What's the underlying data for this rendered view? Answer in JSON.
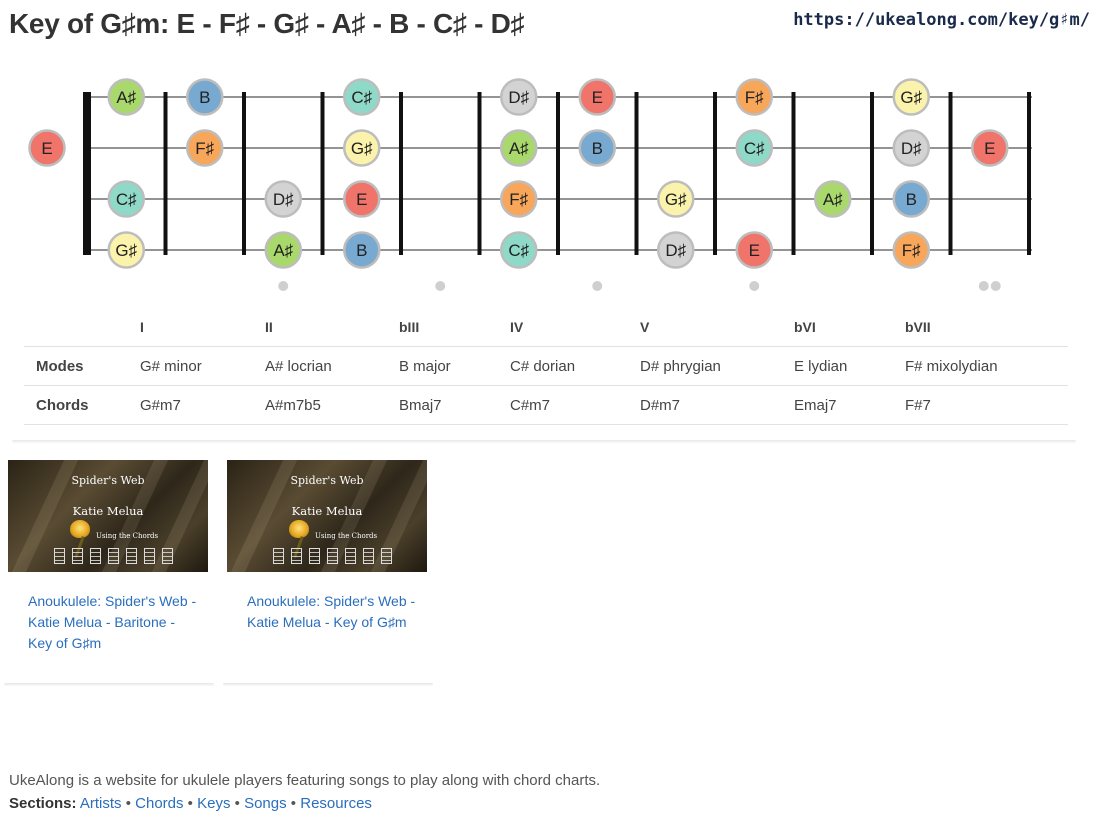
{
  "title": "Key of G♯m: E - F♯ - G♯ - A♯ - B - C♯ - D♯",
  "url": "https://ukealong.com/key/g♯m/",
  "note_colors": {
    "E": "#f0746a",
    "F#": "#f7a65a",
    "G#": "#fbf3ab",
    "A#": "#a9d86d",
    "B": "#78a9d0",
    "C#": "#8fd9c8",
    "D#": "#d3d3d3"
  },
  "fretboard": {
    "open_notes": [
      {
        "string": 1,
        "label": "E",
        "note": "E"
      }
    ],
    "positions": [
      {
        "string": 0,
        "fret": 1,
        "label": "A♯",
        "note": "A#"
      },
      {
        "string": 0,
        "fret": 2,
        "label": "B",
        "note": "B"
      },
      {
        "string": 0,
        "fret": 4,
        "label": "C♯",
        "note": "C#"
      },
      {
        "string": 0,
        "fret": 6,
        "label": "D♯",
        "note": "D#"
      },
      {
        "string": 0,
        "fret": 7,
        "label": "E",
        "note": "E"
      },
      {
        "string": 0,
        "fret": 9,
        "label": "F♯",
        "note": "F#"
      },
      {
        "string": 0,
        "fret": 11,
        "label": "G♯",
        "note": "G#"
      },
      {
        "string": 1,
        "fret": 2,
        "label": "F♯",
        "note": "F#"
      },
      {
        "string": 1,
        "fret": 4,
        "label": "G♯",
        "note": "G#"
      },
      {
        "string": 1,
        "fret": 6,
        "label": "A♯",
        "note": "A#"
      },
      {
        "string": 1,
        "fret": 7,
        "label": "B",
        "note": "B"
      },
      {
        "string": 1,
        "fret": 9,
        "label": "C♯",
        "note": "C#"
      },
      {
        "string": 1,
        "fret": 11,
        "label": "D♯",
        "note": "D#"
      },
      {
        "string": 1,
        "fret": 12,
        "label": "E",
        "note": "E"
      },
      {
        "string": 2,
        "fret": 1,
        "label": "C♯",
        "note": "C#"
      },
      {
        "string": 2,
        "fret": 3,
        "label": "D♯",
        "note": "D#"
      },
      {
        "string": 2,
        "fret": 4,
        "label": "E",
        "note": "E"
      },
      {
        "string": 2,
        "fret": 6,
        "label": "F♯",
        "note": "F#"
      },
      {
        "string": 2,
        "fret": 8,
        "label": "G♯",
        "note": "G#"
      },
      {
        "string": 2,
        "fret": 10,
        "label": "A♯",
        "note": "A#"
      },
      {
        "string": 2,
        "fret": 11,
        "label": "B",
        "note": "B"
      },
      {
        "string": 3,
        "fret": 1,
        "label": "G♯",
        "note": "G#"
      },
      {
        "string": 3,
        "fret": 3,
        "label": "A♯",
        "note": "A#"
      },
      {
        "string": 3,
        "fret": 4,
        "label": "B",
        "note": "B"
      },
      {
        "string": 3,
        "fret": 6,
        "label": "C♯",
        "note": "C#"
      },
      {
        "string": 3,
        "fret": 8,
        "label": "D♯",
        "note": "D#"
      },
      {
        "string": 3,
        "fret": 9,
        "label": "E",
        "note": "E"
      },
      {
        "string": 3,
        "fret": 11,
        "label": "F♯",
        "note": "F#"
      }
    ],
    "single_markers": [
      3,
      5,
      7,
      9
    ],
    "double_markers": [
      12
    ]
  },
  "table": {
    "degrees": [
      "I",
      "II",
      "bIII",
      "IV",
      "V",
      "bVI",
      "bVII"
    ],
    "modes_label": "Modes",
    "modes": [
      "G# minor",
      "A# locrian",
      "B major",
      "C# dorian",
      "D# phrygian",
      "E lydian",
      "F# mixolydian"
    ],
    "chords_label": "Chords",
    "chords": [
      "G#m7",
      "A#m7b5",
      "Bmaj7",
      "C#m7",
      "D#m7",
      "Emaj7",
      "F#7"
    ]
  },
  "videos": [
    {
      "thumb_title": "Spider's Web",
      "thumb_artist": "Katie Melua",
      "thumb_caption": "Using the Chords",
      "link_text": "Anoukulele: Spider's Web - Katie Melua - Baritone - Key of G♯m"
    },
    {
      "thumb_title": "Spider's Web",
      "thumb_artist": "Katie Melua",
      "thumb_caption": "Using the Chords",
      "link_text": "Anoukulele: Spider's Web - Katie Melua - Key of G♯m"
    }
  ],
  "footer": {
    "description": "UkeAlong is a website for ukulele players featuring songs to play along with chord charts.",
    "sections_label": "Sections:",
    "links": [
      "Artists",
      "Chords",
      "Keys",
      "Songs",
      "Resources"
    ]
  }
}
